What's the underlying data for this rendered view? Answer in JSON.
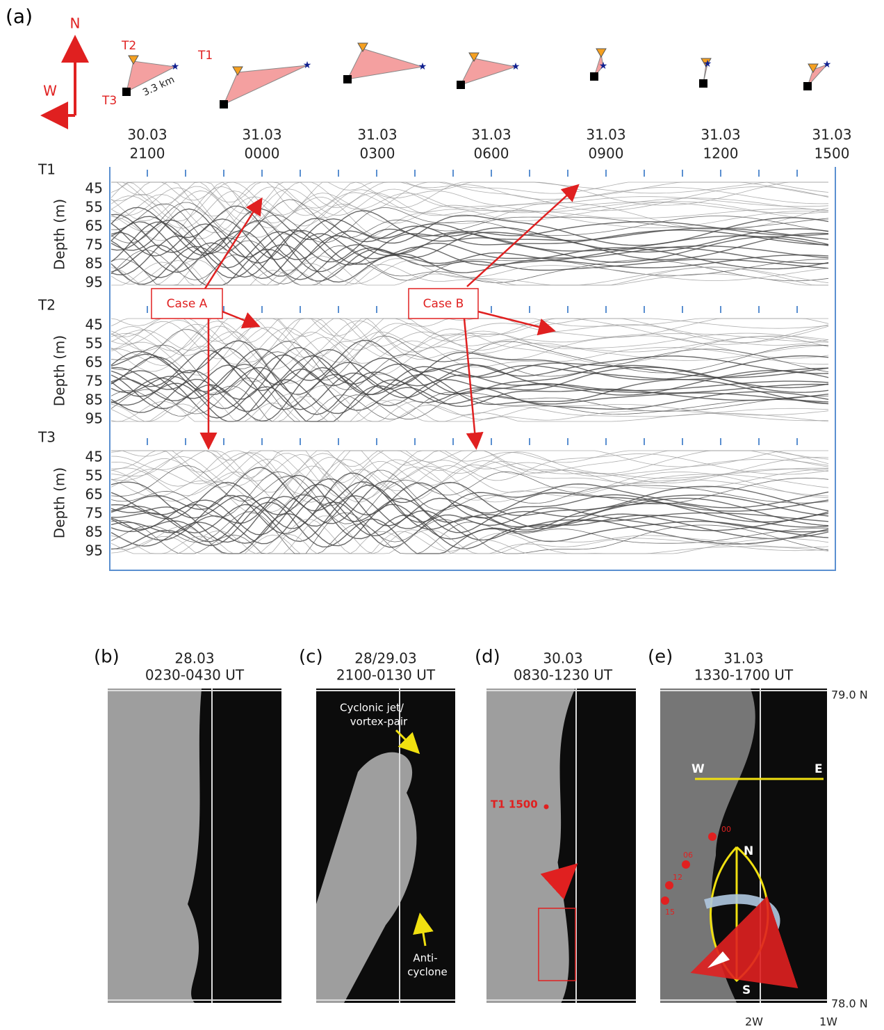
{
  "panel_a": {
    "label": "(a)",
    "compass": {
      "north": "N",
      "west": "W"
    },
    "transponders": [
      "T1",
      "T2",
      "T3"
    ],
    "scale": "3.3 km",
    "times": [
      {
        "date": "30.03",
        "time": "2100"
      },
      {
        "date": "31.03",
        "time": "0000"
      },
      {
        "date": "31.03",
        "time": "0300"
      },
      {
        "date": "31.03",
        "time": "0600"
      },
      {
        "date": "31.03",
        "time": "0900"
      },
      {
        "date": "31.03",
        "time": "1200"
      },
      {
        "date": "31.03",
        "time": "1500"
      }
    ],
    "rows": [
      {
        "label": "T1",
        "axis_label": "Depth (m)",
        "depth_ticks": [
          45,
          55,
          65,
          75,
          85,
          95
        ]
      },
      {
        "label": "T2",
        "axis_label": "Depth (m)",
        "depth_ticks": [
          45,
          55,
          65,
          75,
          85,
          95
        ]
      },
      {
        "label": "T3",
        "axis_label": "Depth (m)",
        "depth_ticks": [
          45,
          55,
          65,
          75,
          85,
          95
        ]
      }
    ],
    "cases": [
      "Case A",
      "Case B"
    ]
  },
  "panels": [
    {
      "label": "(b)",
      "date": "28.03",
      "time": "0230-0430 UT"
    },
    {
      "label": "(c)",
      "date": "28/29.03",
      "time": "2100-0130 UT"
    },
    {
      "label": "(d)",
      "date": "30.03",
      "time": "0830-1230 UT"
    },
    {
      "label": "(e)",
      "date": "31.03",
      "time": "1330-1700 UT"
    }
  ],
  "annotations": {
    "jet": "Cyclonic jet/",
    "vortex": "vortex-pair",
    "anti": "Anti-",
    "cyclone": "cyclone",
    "t1": "T1 1500",
    "track": [
      "00",
      "06",
      "12",
      "15"
    ],
    "west": "W",
    "east": "E",
    "north": "N",
    "south": "S",
    "lat_top": "79.0 N",
    "lat_bottom": "78.0 N",
    "lon_left": "2W",
    "lon_right": "1W"
  }
}
